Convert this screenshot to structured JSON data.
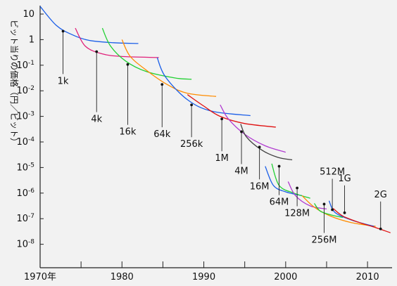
{
  "chart_data": {
    "type": "line",
    "ylabel": "ビット当りの価格（円／ビット）",
    "xlim": [
      1970,
      2013
    ],
    "ylim_log10": [
      -9,
      1.3
    ],
    "x_ticks": [
      {
        "value": 1970,
        "label": "1970年"
      },
      {
        "value": 1975,
        "label": ""
      },
      {
        "value": 1980,
        "label": "1980"
      },
      {
        "value": 1985,
        "label": ""
      },
      {
        "value": 1990,
        "label": "1990"
      },
      {
        "value": 1995,
        "label": ""
      },
      {
        "value": 2000,
        "label": "2000"
      },
      {
        "value": 2005,
        "label": ""
      },
      {
        "value": 2010,
        "label": "2010"
      }
    ],
    "y_ticks": [
      {
        "exp": 1,
        "base": "10",
        "sup": ""
      },
      {
        "exp": 0,
        "base": "1",
        "sup": ""
      },
      {
        "exp": -1,
        "base": "10",
        "sup": "-1"
      },
      {
        "exp": -2,
        "base": "10",
        "sup": "-2"
      },
      {
        "exp": -3,
        "base": "10",
        "sup": "-3"
      },
      {
        "exp": -4,
        "base": "10",
        "sup": "-4"
      },
      {
        "exp": -5,
        "base": "10",
        "sup": "-5"
      },
      {
        "exp": -6,
        "base": "10",
        "sup": "-6"
      },
      {
        "exp": -7,
        "base": "10",
        "sup": "-7"
      },
      {
        "exp": -8,
        "base": "10",
        "sup": "-8"
      }
    ],
    "series": [
      {
        "color": "#1a5ee8",
        "points": [
          [
            1970,
            1.3
          ],
          [
            1972,
            0.55
          ],
          [
            1974,
            0.18
          ],
          [
            1976,
            -0.03
          ],
          [
            1979,
            -0.12
          ],
          [
            1982,
            -0.15
          ]
        ]
      },
      {
        "color": "#e0207a",
        "points": [
          [
            1974.3,
            0.45
          ],
          [
            1975.5,
            -0.25
          ],
          [
            1977.5,
            -0.55
          ],
          [
            1980,
            -0.66
          ],
          [
            1984.5,
            -0.7
          ]
        ]
      },
      {
        "color": "#22d033",
        "points": [
          [
            1977.6,
            0.45
          ],
          [
            1978.6,
            -0.25
          ],
          [
            1980.5,
            -0.85
          ],
          [
            1983,
            -1.25
          ],
          [
            1986.5,
            -1.5
          ],
          [
            1988.5,
            -1.55
          ]
        ]
      },
      {
        "color": "#ff8c00",
        "points": [
          [
            1980,
            0.0
          ],
          [
            1981,
            -0.65
          ],
          [
            1983,
            -1.2
          ],
          [
            1985.5,
            -1.75
          ],
          [
            1988,
            -2.1
          ],
          [
            1991.5,
            -2.22
          ]
        ]
      },
      {
        "color": "#1a5ee8",
        "points": [
          [
            1984.3,
            -0.7
          ],
          [
            1985.3,
            -1.45
          ],
          [
            1988,
            -2.35
          ],
          [
            1991,
            -2.8
          ],
          [
            1995.7,
            -2.97
          ]
        ]
      },
      {
        "color": "#e01010",
        "points": [
          [
            1988,
            -2.15
          ],
          [
            1990,
            -2.6
          ],
          [
            1992,
            -3.0
          ],
          [
            1995,
            -3.28
          ],
          [
            1998.8,
            -3.42
          ]
        ]
      },
      {
        "color": "#b03bd0",
        "points": [
          [
            1992,
            -2.55
          ],
          [
            1993,
            -3.1
          ],
          [
            1995,
            -3.7
          ],
          [
            1997.5,
            -4.15
          ],
          [
            2000,
            -4.4
          ]
        ]
      },
      {
        "color": "#404040",
        "points": [
          [
            1994.5,
            -3.3
          ],
          [
            1995.2,
            -3.8
          ],
          [
            1997,
            -4.3
          ],
          [
            1999,
            -4.6
          ],
          [
            2000.8,
            -4.7
          ]
        ]
      },
      {
        "color": "#1a5ee8",
        "points": [
          [
            1997.5,
            -4.95
          ],
          [
            1998.5,
            -5.7
          ],
          [
            2000,
            -5.95
          ],
          [
            2002,
            -6.1
          ]
        ]
      },
      {
        "color": "#22d033",
        "points": [
          [
            1998.3,
            -4.85
          ],
          [
            1999.2,
            -5.7
          ],
          [
            2001,
            -6.0
          ],
          [
            2003,
            -6.2
          ]
        ]
      },
      {
        "color": "#b03bd0",
        "points": [
          [
            2000.3,
            -5.55
          ],
          [
            2001.2,
            -6.1
          ],
          [
            2003,
            -6.5
          ],
          [
            2005,
            -6.62
          ]
        ]
      },
      {
        "color": "#ff8c00",
        "points": [
          [
            2002,
            -6.1
          ],
          [
            2003.5,
            -6.55
          ],
          [
            2005.5,
            -6.9
          ],
          [
            2008,
            -7.15
          ],
          [
            2011,
            -7.3
          ]
        ]
      },
      {
        "color": "#22d033",
        "points": [
          [
            2003.5,
            -6.4
          ],
          [
            2004.2,
            -6.7
          ],
          [
            2005.5,
            -6.85
          ],
          [
            2007,
            -6.95
          ]
        ]
      },
      {
        "color": "#1a5ee8",
        "points": [
          [
            2005.3,
            -6.3
          ],
          [
            2006,
            -6.75
          ],
          [
            2008,
            -7.05
          ],
          [
            2010.8,
            -7.3
          ]
        ]
      },
      {
        "color": "#e01010",
        "points": [
          [
            2005.8,
            -6.6
          ],
          [
            2007,
            -6.9
          ],
          [
            2009,
            -7.15
          ],
          [
            2011,
            -7.35
          ],
          [
            2012.8,
            -7.55
          ]
        ]
      }
    ],
    "annotations": [
      {
        "label": "1k",
        "x": 1972.8,
        "y": 0.33
      },
      {
        "label": "4k",
        "x": 1976.9,
        "y": -0.47
      },
      {
        "label": "16k",
        "x": 1980.7,
        "y": -0.97
      },
      {
        "label": "64k",
        "x": 1984.9,
        "y": -1.75
      },
      {
        "label": "256k",
        "x": 1988.5,
        "y": -2.55
      },
      {
        "label": "1M",
        "x": 1992.2,
        "y": -3.1
      },
      {
        "label": "4M",
        "x": 1994.6,
        "y": -3.6
      },
      {
        "label": "16M",
        "x": 1996.8,
        "y": -4.2
      },
      {
        "label": "64M",
        "x": 1999.2,
        "y": -4.95
      },
      {
        "label": "128M",
        "x": 2001.4,
        "y": -5.8
      },
      {
        "label": "256M",
        "x": 2004.7,
        "y": -6.43
      },
      {
        "label": "512M",
        "x": 2005.7,
        "y": -6.65
      },
      {
        "label": "1G",
        "x": 2007.2,
        "y": -6.77
      },
      {
        "label": "2G",
        "x": 2011.6,
        "y": -7.4
      }
    ]
  }
}
